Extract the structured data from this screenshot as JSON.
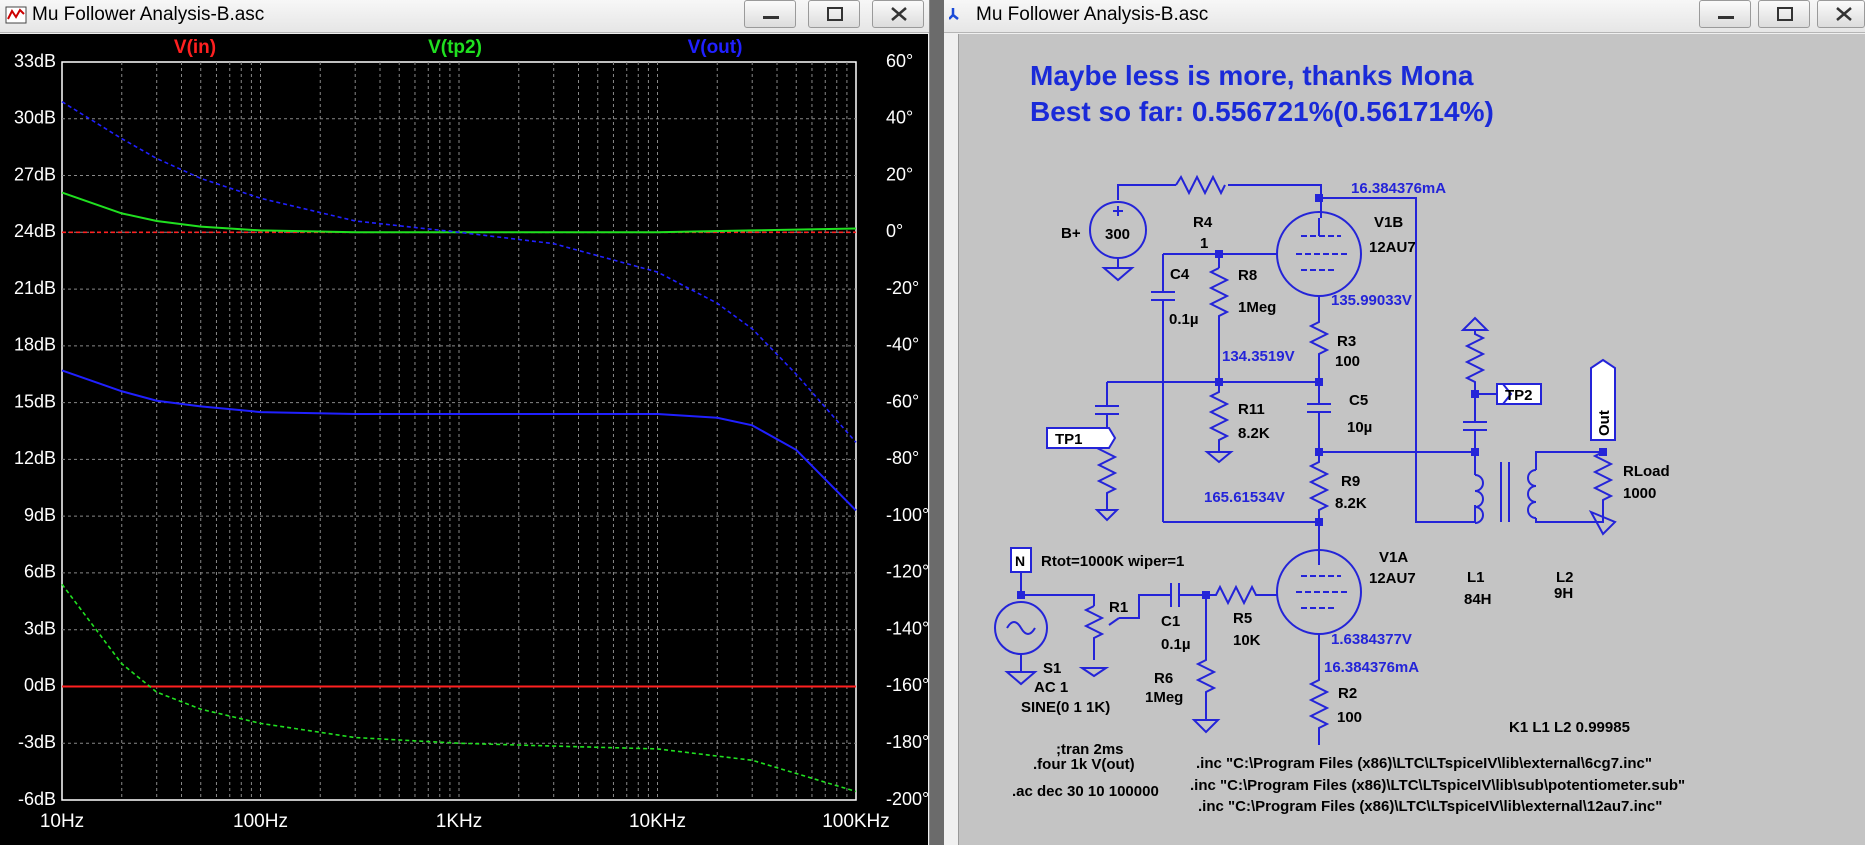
{
  "left_window": {
    "title": "Mu Follower Analysis-B.asc",
    "traces": {
      "vin": "V(in)",
      "vtp2": "V(tp2)",
      "vout": "V(out)"
    },
    "x_ticks": [
      "10Hz",
      "100Hz",
      "1KHz",
      "10KHz",
      "100KHz"
    ],
    "y_left_ticks": [
      "33dB",
      "30dB",
      "27dB",
      "24dB",
      "21dB",
      "18dB",
      "15dB",
      "12dB",
      "9dB",
      "6dB",
      "3dB",
      "0dB",
      "-3dB",
      "-6dB"
    ],
    "y_right_ticks": [
      "60°",
      "40°",
      "20°",
      "0°",
      "-20°",
      "-40°",
      "-60°",
      "-80°",
      "-100°",
      "-120°",
      "-140°",
      "-160°",
      "-180°",
      "-200°"
    ]
  },
  "chart_data": {
    "type": "line",
    "x_scale": "log",
    "xlim": [
      10,
      100000
    ],
    "ylim_left": [
      -6,
      33
    ],
    "ylim_right": [
      -200,
      60
    ],
    "grid": true,
    "series": [
      {
        "name": "V(in)",
        "color": "#ff2020",
        "x": [
          10,
          100000
        ],
        "magnitude_db": [
          0,
          0
        ],
        "phase_deg": [
          0,
          0
        ]
      },
      {
        "name": "V(tp2)",
        "color": "#20e020",
        "x": [
          10,
          20,
          30,
          50,
          100,
          300,
          1000,
          3000,
          10000,
          30000,
          100000
        ],
        "magnitude_db": [
          26.1,
          25.0,
          24.6,
          24.3,
          24.1,
          24.0,
          24.0,
          24.0,
          24.0,
          24.1,
          24.2
        ],
        "phase_deg": [
          -124,
          -152,
          -162,
          -168,
          -173,
          -178,
          -180,
          -181,
          -182,
          -186,
          -197
        ]
      },
      {
        "name": "V(out)",
        "color": "#2020ff",
        "x": [
          10,
          20,
          30,
          50,
          100,
          300,
          1000,
          3000,
          10000,
          20000,
          30000,
          50000,
          100000
        ],
        "magnitude_db": [
          16.7,
          15.6,
          15.1,
          14.8,
          14.5,
          14.4,
          14.4,
          14.4,
          14.4,
          14.2,
          13.8,
          12.5,
          9.3
        ],
        "phase_deg": [
          46,
          33,
          26,
          19,
          12,
          4,
          0,
          -4,
          -14,
          -25,
          -34,
          -50,
          -74
        ]
      }
    ]
  },
  "right_window": {
    "title": "Mu Follower Analysis-B.asc",
    "heading1": "Maybe less is more, thanks Mona",
    "heading2": "Best so far: 0.556721%(0.561714%)",
    "labels": {
      "current_top": "16.384376mA",
      "bplus": "B+",
      "v300": "300",
      "r4": "R4",
      "r4v": "1",
      "v1b": "V1B",
      "v1b_type": "12AU7",
      "c4": "C4",
      "c4v": "0.1µ",
      "r8": "R8",
      "r8v": "1Meg",
      "v135": "135.99033V",
      "r3": "R3",
      "r3v": "100",
      "v134": "134.3519V",
      "c5": "C5",
      "c5v": "10µ",
      "r11": "R11",
      "r11v": "8.2K",
      "tp1": "TP1",
      "tp2": "TP2",
      "out": "Out",
      "rload": "RLoad",
      "rloadv": "1000",
      "r9": "R9",
      "r9v": "8.2K",
      "v165": "165.61534V",
      "rtot": "Rtot=1000K wiper=1",
      "v1a": "V1A",
      "v1a_type": "12AU7",
      "l1": "L1",
      "l1v": "84H",
      "l2": "L2",
      "l2v": "9H",
      "r1": "R1",
      "c1": "C1",
      "c1v": "0.1µ",
      "r5": "R5",
      "r5v": "10K",
      "v1638": "1.6384377V",
      "current_bot": "16.384376mA",
      "r6": "R6",
      "r6v": "1Meg",
      "r2": "R2",
      "r2v": "100",
      "s1": "S1",
      "s1ac": "AC 1",
      "s1sine": "SINE(0 1 1K)",
      "k1": "K1 L1 L2 0.99985",
      "tran": ";tran 2ms",
      "four": ".four 1k V(out)",
      "acdec": ".ac dec 30 10 100000",
      "inc1": ".inc \"C:\\Program Files (x86)\\LTC\\LTspiceIV\\lib\\external\\6cg7.inc\"",
      "inc2": ".inc \"C:\\Program Files (x86)\\LTC\\LTspiceIV\\lib\\sub\\potentiometer.sub\"",
      "inc3": ".inc \"C:\\Program Files (x86)\\LTC\\LTspiceIV\\lib\\external\\12au7.inc\""
    }
  },
  "colors": {
    "wire": "#2424d8",
    "plot_bg": "#000000",
    "schematic_bg": "#c4c4c4",
    "heading": "#1a2ad8"
  }
}
